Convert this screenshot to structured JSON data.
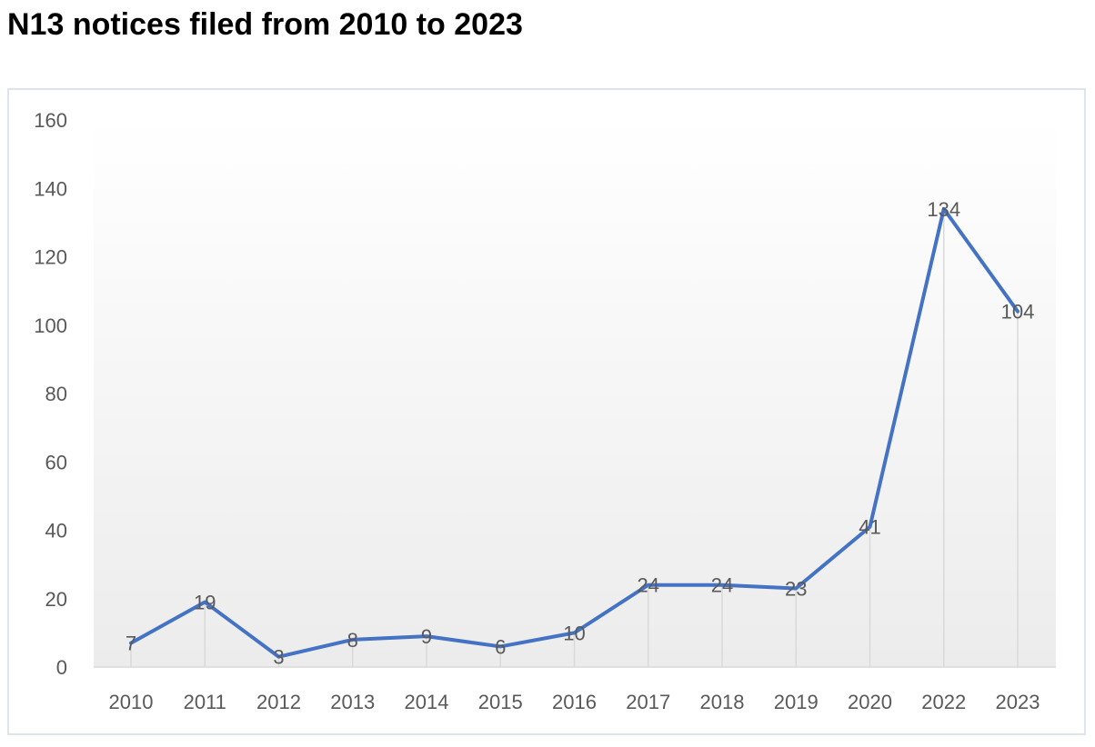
{
  "title": "N13 notices filed from 2010 to 2023",
  "chart_data": {
    "type": "line",
    "title": "",
    "xlabel": "",
    "ylabel": "",
    "categories": [
      "2010",
      "2011",
      "2012",
      "2013",
      "2014",
      "2015",
      "2016",
      "2017",
      "2018",
      "2019",
      "2020",
      "2022",
      "2023"
    ],
    "series": [
      {
        "values": [
          7,
          19,
          3,
          8,
          9,
          6,
          10,
          24,
          24,
          23,
          41,
          134,
          104
        ],
        "color": "#4472c4"
      }
    ],
    "data_labels": [
      "7",
      "19",
      "3",
      "8",
      "9",
      "6",
      "10",
      "24",
      "24",
      "23",
      "41",
      "134",
      "104"
    ],
    "ylim": [
      0,
      160
    ],
    "yticks": [
      0,
      20,
      40,
      60,
      80,
      100,
      120,
      140,
      160
    ],
    "ytick_labels": [
      "0",
      "20",
      "40",
      "60",
      "80",
      "100",
      "120",
      "140",
      "160"
    ],
    "grid": false,
    "drop_lines": true,
    "legend": "none",
    "colors": {
      "line": "#4472c4",
      "drop_line": "#d9d9d9",
      "axis": "#d9d9d9",
      "text": "#595959"
    }
  }
}
